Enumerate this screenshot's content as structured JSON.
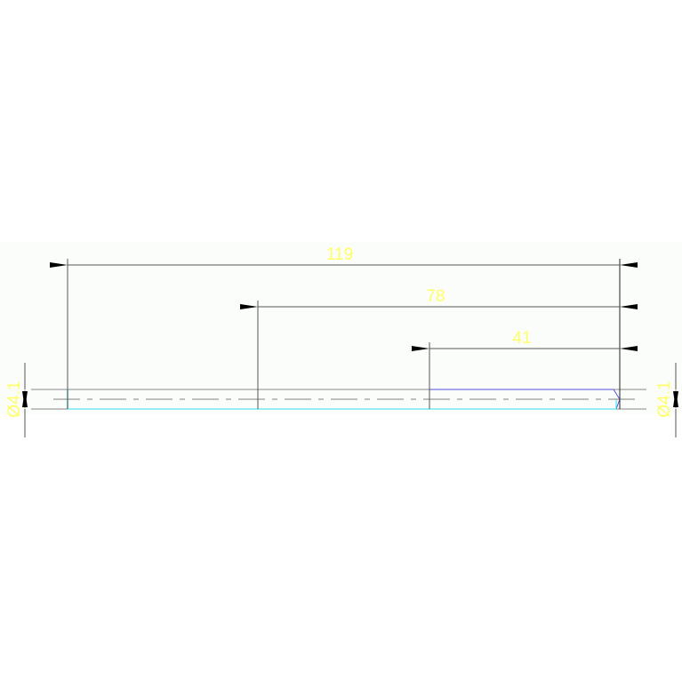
{
  "drawing": {
    "dimensions": {
      "overall_length": "119",
      "middle_length": "78",
      "short_length": "41",
      "diameter_left": "Ø4.1",
      "diameter_right": "Ø4.1"
    },
    "colors": {
      "background": "#ffffff",
      "drawing_area": "#fbfdfb",
      "dimension_text": "#ffff66",
      "dimension_line": "#555555",
      "outline_cyan": "#33e0f0",
      "outline_blue": "#5050e0",
      "centerline": "#999999"
    }
  }
}
